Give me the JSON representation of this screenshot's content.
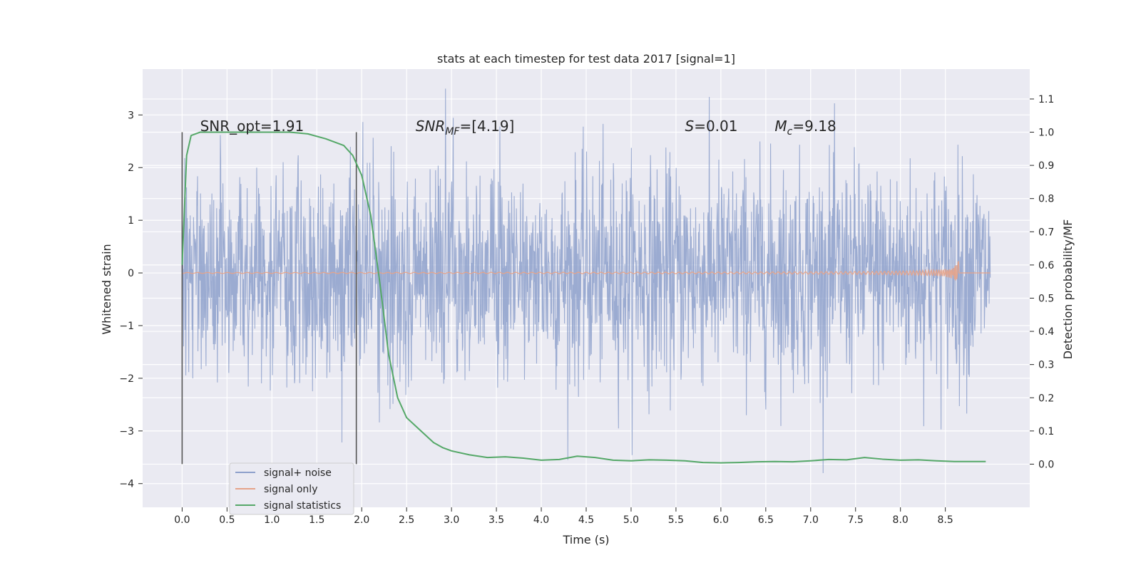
{
  "chart_data": {
    "type": "line",
    "title": "stats at each timestep for test data 2017 [signal=1]",
    "xlabel": "Time (s)",
    "ylabel_left": "Whitened strain",
    "ylabel_right": "Detection probability/MF",
    "xlim": [
      -0.44,
      9.44
    ],
    "ylim_left": [
      -4.45,
      3.87
    ],
    "ylim_right": [
      -0.13,
      1.19
    ],
    "x_ticks": [
      "0.0",
      "0.5",
      "1.0",
      "1.5",
      "2.0",
      "2.5",
      "3.0",
      "3.5",
      "4.0",
      "4.5",
      "5.0",
      "5.5",
      "6.0",
      "6.5",
      "7.0",
      "7.5",
      "8.0",
      "8.5"
    ],
    "y_ticks_left": [
      "3",
      "2",
      "1",
      "0",
      "−1",
      "−2",
      "−3",
      "−4"
    ],
    "y_ticks_right": [
      "1.1",
      "1.0",
      "0.9",
      "0.8",
      "0.7",
      "0.6",
      "0.5",
      "0.4",
      "0.3",
      "0.2",
      "0.1",
      "0.0"
    ],
    "grid": true,
    "legend_position": "lower-left",
    "vlines": [
      0.0,
      1.94
    ],
    "annotations": [
      {
        "text": "SNR_opt=1.91",
        "x": 0.2
      },
      {
        "text": "SNR",
        "sub": "MF",
        "suffix": "=[4.19]",
        "x": 2.6,
        "italic": true
      },
      {
        "text": "S",
        "suffix": "=0.01",
        "x": 5.6,
        "italic": true
      },
      {
        "text": "M",
        "sub": "c",
        "suffix": "=9.18",
        "x": 6.6,
        "italic": true
      }
    ],
    "series": [
      {
        "name": "signal+ noise",
        "color": "#8da0cb",
        "axis": "left",
        "x_range": [
          0.0,
          9.0
        ],
        "envelope": {
          "typical": 2.0,
          "max": 3.5,
          "min": -3.8
        }
      },
      {
        "name": "signal only",
        "color": "#e5a38a",
        "axis": "left",
        "chirp_end": 8.65,
        "amplitude_peak": 0.25
      },
      {
        "name": "signal statistics",
        "color": "#55a868",
        "axis": "right",
        "x": [
          0.0,
          0.05,
          0.1,
          0.2,
          0.4,
          0.6,
          0.8,
          1.0,
          1.2,
          1.4,
          1.6,
          1.8,
          1.9,
          2.0,
          2.1,
          2.2,
          2.3,
          2.4,
          2.5,
          2.6,
          2.7,
          2.8,
          2.9,
          3.0,
          3.2,
          3.4,
          3.6,
          3.8,
          4.0,
          4.2,
          4.4,
          4.6,
          4.8,
          5.0,
          5.2,
          5.4,
          5.6,
          5.8,
          6.0,
          6.2,
          6.4,
          6.6,
          6.8,
          7.0,
          7.2,
          7.4,
          7.6,
          7.8,
          8.0,
          8.2,
          8.4,
          8.6,
          8.8,
          8.95
        ],
        "y": [
          0.6,
          0.93,
          0.99,
          1.0,
          1.0,
          1.0,
          1.0,
          1.0,
          1.0,
          0.995,
          0.98,
          0.96,
          0.93,
          0.87,
          0.75,
          0.55,
          0.33,
          0.2,
          0.14,
          0.115,
          0.09,
          0.065,
          0.05,
          0.04,
          0.028,
          0.02,
          0.022,
          0.018,
          0.012,
          0.014,
          0.024,
          0.02,
          0.012,
          0.01,
          0.013,
          0.012,
          0.01,
          0.005,
          0.004,
          0.005,
          0.007,
          0.008,
          0.007,
          0.01,
          0.014,
          0.013,
          0.02,
          0.015,
          0.012,
          0.013,
          0.01,
          0.008,
          0.008,
          0.008
        ]
      }
    ]
  }
}
